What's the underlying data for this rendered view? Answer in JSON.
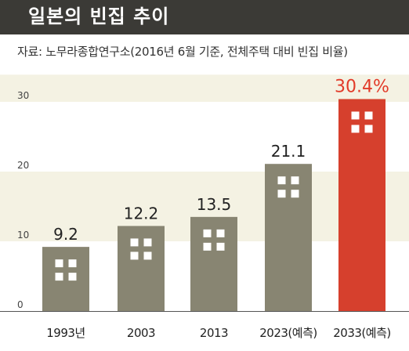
{
  "header": {
    "title": "일본의 빈집 추이"
  },
  "source": "자료: 노무라종합연구소(2016년 6월 기준, 전체주택 대비 빈집 비율)",
  "colors": {
    "bar": "#888572",
    "highlight_bar": "#d6402d",
    "highlight_label": "#e23b29",
    "band": "#f4f2e3",
    "window": "#ffffff",
    "header_bg": "#3b3a36"
  },
  "chart_data": {
    "type": "bar",
    "title": "일본의 빈집 추이",
    "categories": [
      "1993년",
      "2003",
      "2013",
      "2023(예측)",
      "2033(예측)"
    ],
    "values": [
      9.2,
      12.2,
      13.5,
      21.1,
      30.4
    ],
    "value_labels": [
      "9.2",
      "12.2",
      "13.5",
      "21.1",
      "30.4%"
    ],
    "highlight_index": 4,
    "ylim": [
      0,
      30
    ],
    "yticks": [
      "0",
      "10",
      "20",
      "30"
    ],
    "xlabel": "",
    "ylabel": "",
    "grid": false,
    "legend": "none"
  }
}
